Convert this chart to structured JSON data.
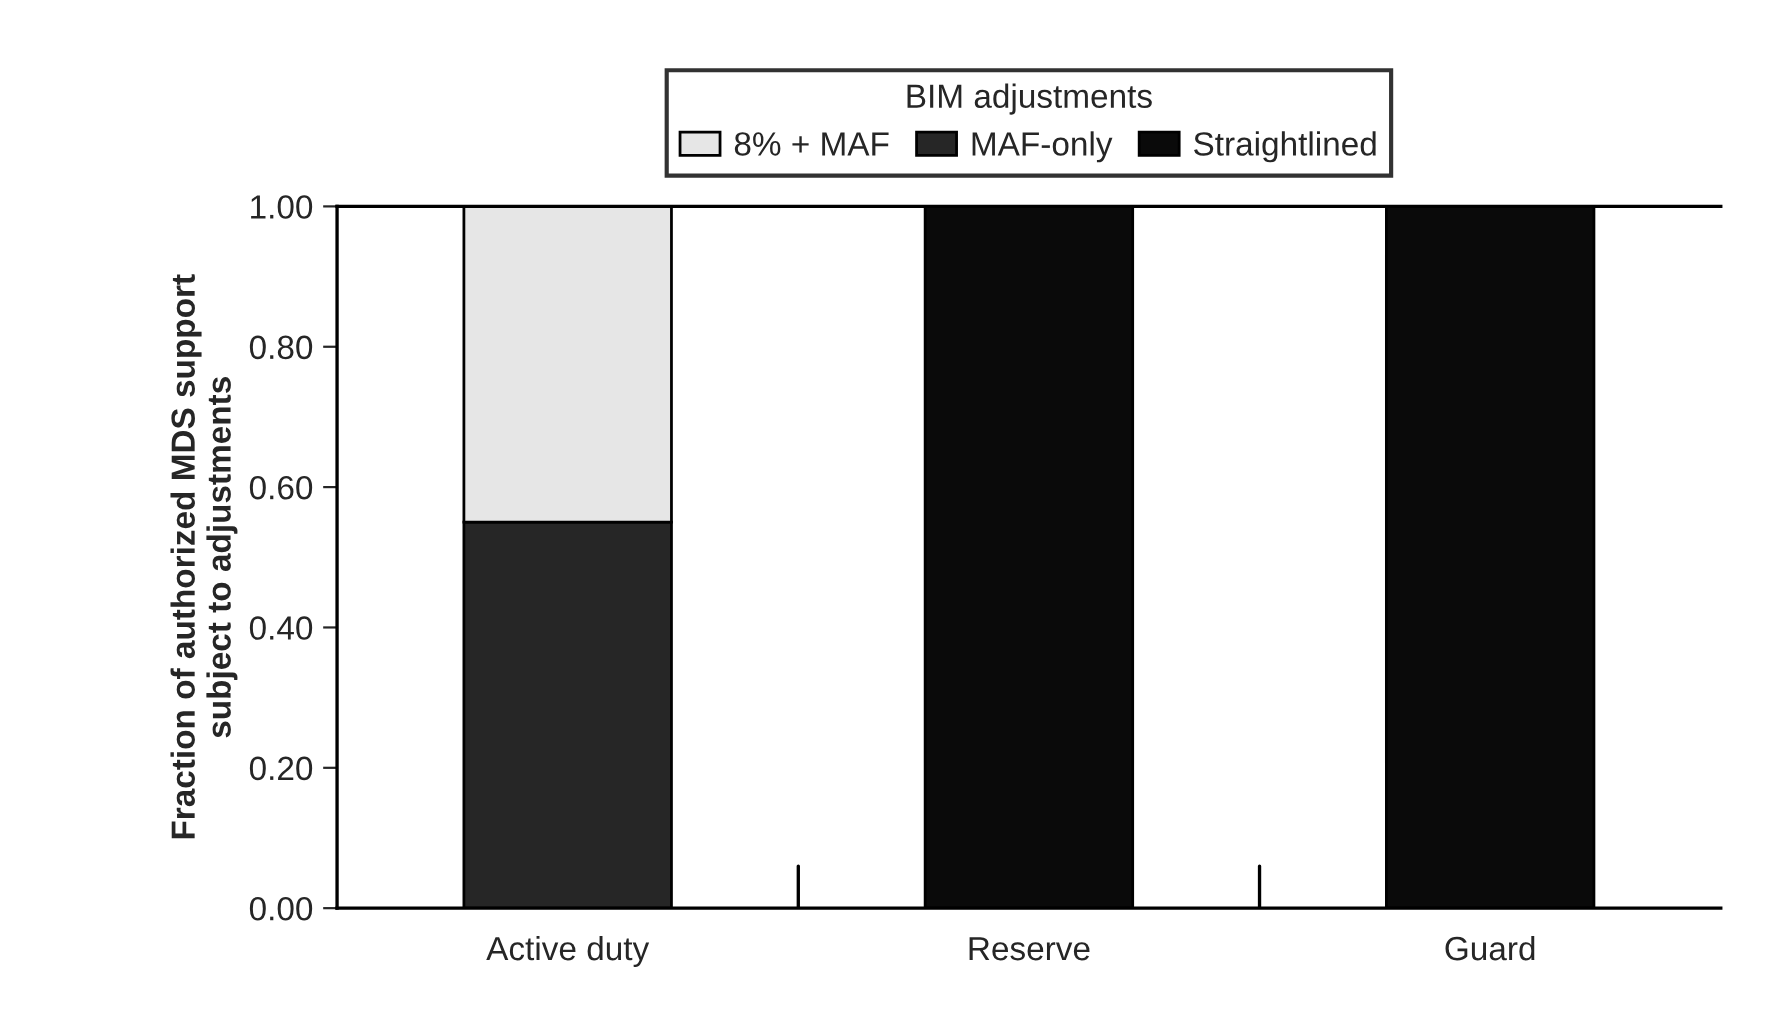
{
  "chart_data": {
    "type": "bar",
    "stacked": true,
    "ylabel": "Fraction of authorized MDS support\nsubject to adjustments",
    "legend_title": "BIM adjustments",
    "legend": "top",
    "categories": [
      "Active duty",
      "Reserve",
      "Guard"
    ],
    "series": [
      {
        "name": "Straightlined",
        "color": "#0a0a0a",
        "values": [
          null,
          1.0,
          1.0
        ]
      },
      {
        "name": "MAF-only",
        "color": "#262626",
        "values": [
          0.55,
          null,
          null
        ]
      },
      {
        "name": "8% + MAF",
        "color": "#e6e6e6",
        "values": [
          0.45,
          null,
          null
        ]
      }
    ],
    "ylim": [
      0,
      1.0
    ],
    "yticks": [
      {
        "value": 0,
        "label": "0.00"
      },
      {
        "value": 0.2,
        "label": "0.20"
      },
      {
        "value": 0.4,
        "label": "0.40"
      },
      {
        "value": 0.6,
        "label": "0.60"
      },
      {
        "value": 0.8,
        "label": "0.80"
      },
      {
        "value": 1.0,
        "label": "1.00"
      }
    ],
    "grid": false
  }
}
